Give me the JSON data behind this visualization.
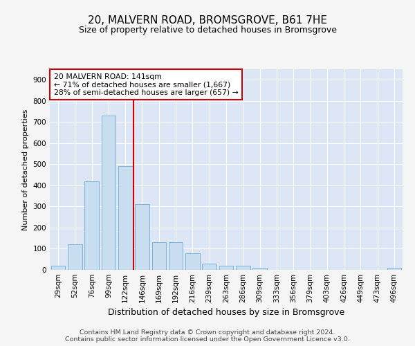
{
  "title": "20, MALVERN ROAD, BROMSGROVE, B61 7HE",
  "subtitle": "Size of property relative to detached houses in Bromsgrove",
  "xlabel": "Distribution of detached houses by size in Bromsgrove",
  "ylabel": "Number of detached properties",
  "bar_color": "#c9ddf0",
  "bar_edge_color": "#7ab3d8",
  "categories": [
    "29sqm",
    "52sqm",
    "76sqm",
    "99sqm",
    "122sqm",
    "146sqm",
    "169sqm",
    "192sqm",
    "216sqm",
    "239sqm",
    "263sqm",
    "286sqm",
    "309sqm",
    "333sqm",
    "356sqm",
    "379sqm",
    "403sqm",
    "426sqm",
    "449sqm",
    "473sqm",
    "496sqm"
  ],
  "values": [
    20,
    120,
    420,
    730,
    490,
    310,
    130,
    130,
    80,
    30,
    20,
    20,
    10,
    0,
    0,
    0,
    0,
    0,
    0,
    0,
    10
  ],
  "ylim": [
    0,
    950
  ],
  "yticks": [
    0,
    100,
    200,
    300,
    400,
    500,
    600,
    700,
    800,
    900
  ],
  "vline_index": 4.5,
  "annotation_text": "20 MALVERN ROAD: 141sqm\n← 71% of detached houses are smaller (1,667)\n28% of semi-detached houses are larger (657) →",
  "annotation_box_facecolor": "#ffffff",
  "annotation_box_edgecolor": "#cc0000",
  "vline_color": "#cc0000",
  "footer_line1": "Contains HM Land Registry data © Crown copyright and database right 2024.",
  "footer_line2": "Contains public sector information licensed under the Open Government Licence v3.0.",
  "fig_facecolor": "#f5f5f5",
  "plot_bg_color": "#dce6f5",
  "grid_color": "#ffffff",
  "title_fontsize": 11,
  "subtitle_fontsize": 9,
  "ylabel_fontsize": 8,
  "xlabel_fontsize": 9,
  "tick_fontsize": 7.5,
  "annotation_fontsize": 7.8,
  "footer_fontsize": 6.8
}
